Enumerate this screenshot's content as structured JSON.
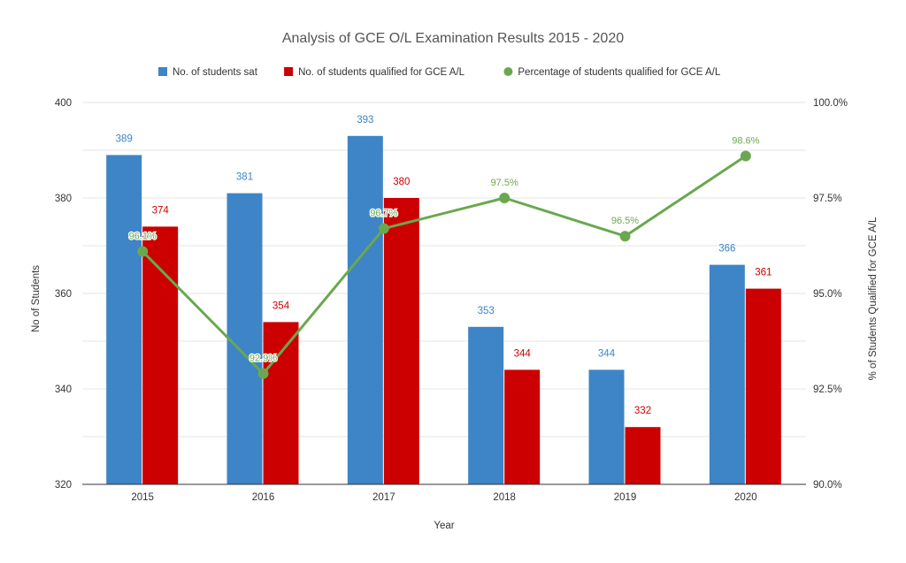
{
  "chart_data": {
    "type": "bar",
    "title": "Analysis of GCE O/L Examination Results 2015 - 2020",
    "xlabel": "Year",
    "ylabel": "No of Students",
    "y2label": "% of Students Qualified for GCE A/L",
    "categories": [
      "2015",
      "2016",
      "2017",
      "2018",
      "2019",
      "2020"
    ],
    "ylim": [
      320,
      400
    ],
    "y_ticks": [
      "320",
      "340",
      "360",
      "380",
      "400"
    ],
    "y2lim": [
      90.0,
      100.0
    ],
    "y2_ticks": [
      "90.0%",
      "92.5%",
      "95.0%",
      "97.5%",
      "100.0%"
    ],
    "grid": true,
    "legend_position": "top",
    "series": [
      {
        "name": "No. of students sat",
        "kind": "bar",
        "axis": "left",
        "color": "#3d85c6",
        "values": [
          389,
          381,
          393,
          353,
          344,
          366
        ],
        "labels": [
          "389",
          "381",
          "393",
          "353",
          "344",
          "366"
        ]
      },
      {
        "name": "No. of students qualified for GCE A/L",
        "kind": "bar",
        "axis": "left",
        "color": "#cc0000",
        "values": [
          374,
          354,
          380,
          344,
          332,
          361
        ],
        "labels": [
          "374",
          "354",
          "380",
          "344",
          "332",
          "361"
        ]
      },
      {
        "name": "Percentage of students qualified for GCE A/L",
        "kind": "line",
        "axis": "right",
        "color": "#6aa84f",
        "values": [
          96.1,
          92.9,
          96.7,
          97.5,
          96.5,
          98.6
        ],
        "labels": [
          "96.1%",
          "92.9%",
          "96.7%",
          "97.5%",
          "96.5%",
          "98.6%"
        ]
      }
    ]
  }
}
